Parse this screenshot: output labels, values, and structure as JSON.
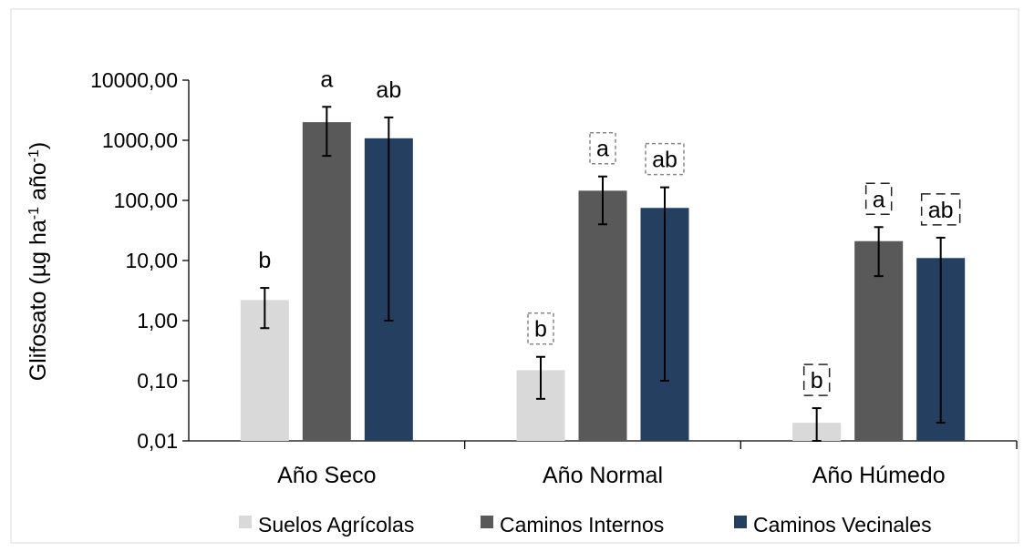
{
  "chart_data": {
    "type": "bar",
    "title": "",
    "xlabel": "",
    "ylabel_parts": [
      "Glifosato (µg ha",
      "-1",
      " año",
      "-1",
      ")"
    ],
    "y_scale": "log",
    "ylim": [
      0.01,
      10000
    ],
    "y_ticks": [
      {
        "value": 0.01,
        "label": "0,01"
      },
      {
        "value": 0.1,
        "label": "0,10"
      },
      {
        "value": 1,
        "label": "1,00"
      },
      {
        "value": 10,
        "label": "10,00"
      },
      {
        "value": 100,
        "label": "100,00"
      },
      {
        "value": 1000,
        "label": "1000,00"
      },
      {
        "value": 10000,
        "label": "10000,00"
      }
    ],
    "categories": [
      "Año Seco",
      "Año Normal",
      "Año Húmedo"
    ],
    "legend_position": "bottom",
    "grid": false,
    "series": [
      {
        "name": "Suelos Agrícolas",
        "color": "#d9d9d9",
        "values": [
          2.2,
          0.15,
          0.02
        ],
        "error_low": [
          0.75,
          0.05,
          0.01
        ],
        "error_high": [
          3.5,
          0.25,
          0.035
        ],
        "letters": [
          "b",
          "b",
          "b"
        ]
      },
      {
        "name": "Caminos Internos",
        "color": "#595959",
        "values": [
          2000,
          145,
          21
        ],
        "error_low": [
          550,
          40,
          5.5
        ],
        "error_high": [
          3600,
          250,
          36
        ],
        "letters": [
          "a",
          "a",
          "a"
        ]
      },
      {
        "name": "Caminos Vecinales",
        "color": "#243f60",
        "values": [
          1080,
          75,
          11
        ],
        "error_low": [
          1.0,
          0.1,
          0.02
        ],
        "error_high": [
          2400,
          165,
          24
        ],
        "letters": [
          "ab",
          "ab",
          "ab"
        ]
      }
    ],
    "letter_boxes": [
      "none",
      "dashed-gray",
      "dashed-black"
    ]
  }
}
